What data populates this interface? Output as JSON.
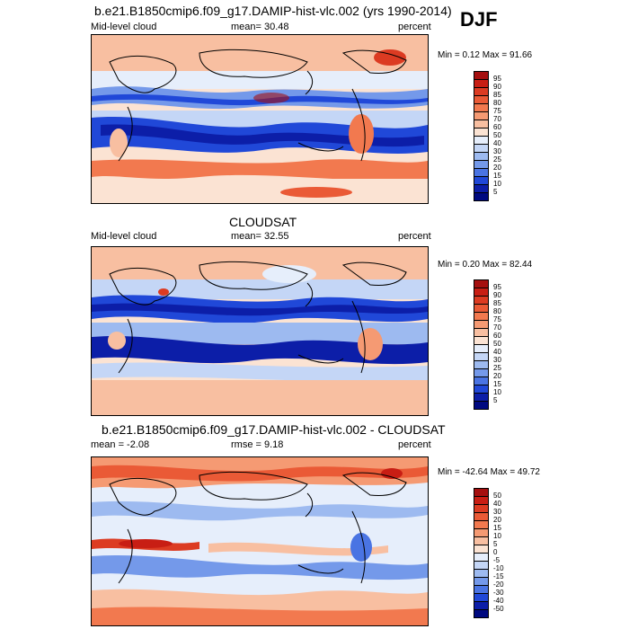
{
  "season": "DJF",
  "panels": [
    {
      "title": "b.e21.B1850cmip6.f09_g17.DAMIP-hist-vlc.002 (yrs 1990-2014)",
      "left_label": "Mid-level cloud",
      "center_label": "mean=  30.48",
      "right_label": "percent",
      "minmax": "Min =  0.12 Max =  91.66",
      "colorbar": {
        "labels": [
          "95",
          "90",
          "85",
          "80",
          "75",
          "70",
          "60",
          "50",
          "40",
          "30",
          "25",
          "20",
          "15",
          "10",
          "5"
        ],
        "colors": [
          "#a50f0f",
          "#c81e14",
          "#dc3b22",
          "#ea5a36",
          "#f2794f",
          "#f59a73",
          "#f8bfa1",
          "#fbe3d3",
          "#e6eefb",
          "#c4d6f6",
          "#9dbaf0",
          "#7499ea",
          "#4a74e3",
          "#2048d8",
          "#0c1ea8",
          "#000a80"
        ]
      }
    },
    {
      "title": "CLOUDSAT",
      "left_label": "Mid-level cloud",
      "center_label": "mean=  32.55",
      "right_label": "percent",
      "minmax": "Min =  0.20 Max =  82.44",
      "colorbar": {
        "labels": [
          "95",
          "90",
          "85",
          "80",
          "75",
          "70",
          "60",
          "50",
          "40",
          "30",
          "25",
          "20",
          "15",
          "10",
          "5"
        ],
        "colors": [
          "#a50f0f",
          "#c81e14",
          "#dc3b22",
          "#ea5a36",
          "#f2794f",
          "#f59a73",
          "#f8bfa1",
          "#fbe3d3",
          "#e6eefb",
          "#c4d6f6",
          "#9dbaf0",
          "#7499ea",
          "#4a74e3",
          "#2048d8",
          "#0c1ea8",
          "#000a80"
        ]
      }
    },
    {
      "title": "b.e21.B1850cmip6.f09_g17.DAMIP-hist-vlc.002 - CLOUDSAT",
      "left_label": "mean =  -2.08",
      "center_label": "rmse =   9.18",
      "right_label": "percent",
      "minmax": "Min = -42.64 Max =  49.72",
      "colorbar": {
        "labels": [
          "50",
          "40",
          "30",
          "20",
          "15",
          "10",
          "5",
          "0",
          "-5",
          "-10",
          "-15",
          "-20",
          "-30",
          "-40",
          "-50"
        ],
        "colors": [
          "#a50f0f",
          "#c81e14",
          "#dc3b22",
          "#ea5a36",
          "#f2794f",
          "#f59a73",
          "#f8bfa1",
          "#fbe3d3",
          "#e6eefb",
          "#c4d6f6",
          "#9dbaf0",
          "#7499ea",
          "#4a74e3",
          "#2048d8",
          "#0c1ea8",
          "#000a80"
        ]
      }
    }
  ]
}
